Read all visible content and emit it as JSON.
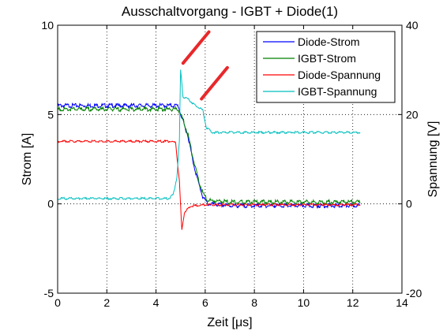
{
  "chart_data": {
    "type": "line",
    "title": "Ausschaltvorgang - IGBT + Diode(1)",
    "xlabel": "Zeit [μs]",
    "ylabel_left": "Strom [A]",
    "ylabel_right": "Spannung [V]",
    "xlim": [
      0,
      14
    ],
    "ylim_left": [
      -5,
      10
    ],
    "ylim_right": [
      -20,
      40
    ],
    "x_ticks": [
      "0",
      "2",
      "4",
      "6",
      "8",
      "10",
      "12",
      "14"
    ],
    "y_ticks_left": [
      "-5",
      "0",
      "5",
      "10"
    ],
    "y_ticks_right": [
      "-20",
      "0",
      "20",
      "40"
    ],
    "grid": true,
    "legend_position": "top-right",
    "series": [
      {
        "name": "Diode-Strom",
        "axis": "left",
        "color": "#0000ff",
        "points": [
          [
            0,
            5.5
          ],
          [
            4.9,
            5.5
          ],
          [
            5.1,
            4.6
          ],
          [
            5.3,
            3.8
          ],
          [
            5.5,
            2.4
          ],
          [
            5.7,
            1.3
          ],
          [
            5.9,
            0.4
          ],
          [
            6.1,
            0.0
          ],
          [
            7,
            -0.1
          ],
          [
            9,
            -0.1
          ],
          [
            12.3,
            -0.1
          ]
        ]
      },
      {
        "name": "IGBT-Strom",
        "axis": "left",
        "color": "#008000",
        "points": [
          [
            0,
            5.3
          ],
          [
            4.9,
            5.3
          ],
          [
            5.1,
            4.7
          ],
          [
            5.3,
            3.9
          ],
          [
            5.5,
            2.6
          ],
          [
            5.7,
            1.5
          ],
          [
            5.9,
            0.6
          ],
          [
            6.1,
            0.2
          ],
          [
            7,
            0.1
          ],
          [
            9,
            0.1
          ],
          [
            12.3,
            0.1
          ]
        ]
      },
      {
        "name": "Diode-Spannung",
        "axis": "right",
        "color": "#ff0000",
        "points": [
          [
            0,
            14
          ],
          [
            4.6,
            14
          ],
          [
            4.8,
            13.6
          ],
          [
            4.95,
            5
          ],
          [
            5.05,
            -6
          ],
          [
            5.15,
            -2
          ],
          [
            5.4,
            -0.5
          ],
          [
            6,
            -0.2
          ],
          [
            12.3,
            -0.2
          ]
        ]
      },
      {
        "name": "IGBT-Spannung",
        "axis": "right",
        "color": "#00bfbf",
        "points": [
          [
            0,
            1.2
          ],
          [
            4.5,
            1.2
          ],
          [
            4.7,
            2
          ],
          [
            4.85,
            6
          ],
          [
            4.95,
            14
          ],
          [
            5.0,
            30
          ],
          [
            5.1,
            24
          ],
          [
            5.3,
            23.5
          ],
          [
            5.6,
            22
          ],
          [
            5.9,
            21
          ],
          [
            6.05,
            17
          ],
          [
            6.3,
            16
          ],
          [
            12.3,
            16
          ]
        ]
      }
    ],
    "annotations": [
      {
        "type": "line",
        "color": "#e8282b",
        "from": [
          5.1,
          31.5
        ],
        "to": [
          6.15,
          38.5
        ]
      },
      {
        "type": "line",
        "color": "#e8282b",
        "from": [
          5.85,
          23.5
        ],
        "to": [
          6.9,
          30.5
        ]
      }
    ]
  }
}
